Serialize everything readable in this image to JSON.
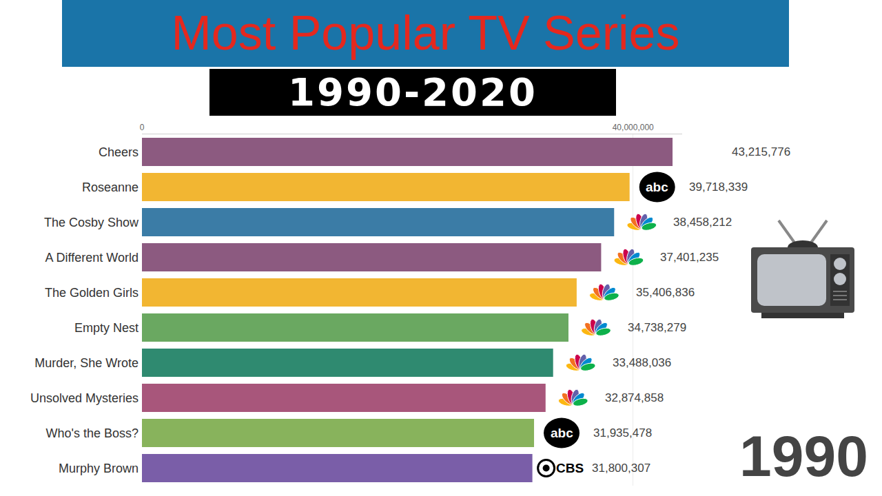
{
  "chart_data": {
    "type": "bar",
    "orientation": "horizontal",
    "title": "Most Popular TV Series",
    "subtitle": "1990-2020",
    "annotation": "1990",
    "categories": [
      "Cheers",
      "Roseanne",
      "The Cosby Show",
      "A Different World",
      "The Golden Girls",
      "Empty Nest",
      "Murder, She Wrote",
      "Unsolved Mysteries",
      "Who's the Boss?",
      "Murphy Brown"
    ],
    "values": [
      43215776,
      39718339,
      38458212,
      37401235,
      35406836,
      34738279,
      33488036,
      32874858,
      31935478,
      31800307
    ],
    "value_labels": [
      "43,215,776",
      "39,718,339",
      "38,458,212",
      "37,401,235",
      "35,406,836",
      "34,738,279",
      "33,488,036",
      "32,874,858",
      "31,935,478",
      "31,800,307"
    ],
    "network_logos": [
      null,
      "abc",
      null,
      null,
      null,
      null,
      null,
      null,
      "abc",
      "CBS"
    ],
    "colors": [
      "#8c5a80",
      "#f2b632",
      "#3b7ca6",
      "#8c5a80",
      "#f2b632",
      "#6aa861",
      "#2f8a70",
      "#a8567b",
      "#88b35c",
      "#7a5ea8"
    ],
    "xlim": [
      0,
      44000000
    ],
    "xticks": [
      0,
      {
        "value": 40000000,
        "label": "40,000,000"
      }
    ],
    "grid": true,
    "data_labels": true
  }
}
